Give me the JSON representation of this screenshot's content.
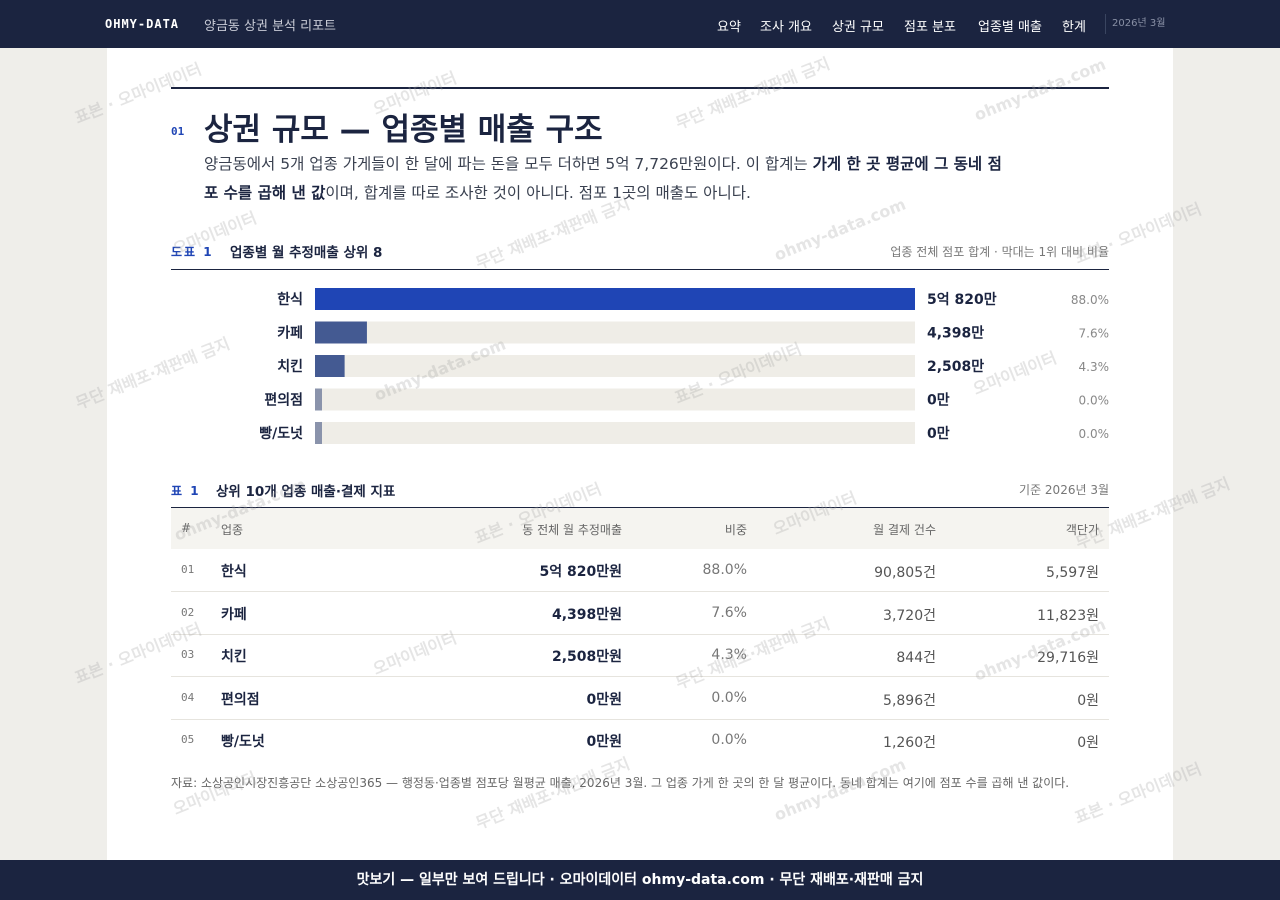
{
  "nav": {
    "brand": "OHMY-DATA",
    "subtitle": "양금동 상권 분석 리포트",
    "links": [
      "요약",
      "조사 개요",
      "상권 규모",
      "점포 분포",
      "업종별 매출",
      "한계"
    ],
    "date": "2026년 3월"
  },
  "section": {
    "number": "01",
    "title": "상권 규모 — 업종별 매출 구조",
    "lead": [
      "양금동에서 5개 업종 가게들이 한 달에 파는 돈을 모두 더하면 5억 7,726만원이다. 이 합계는 ",
      "가게 한 곳 평균에 그 동네 점포 수를 곱해 낸 값",
      "이며, 합계를 따로 조사한 것이 아니다. 점포 1곳의 매출도 아니다."
    ]
  },
  "figure": {
    "label": "도표 1",
    "title": "업종별 월 추정매출 상위 8",
    "note": "업종 전체 점포 합계 · 막대는 1위 대비 비율",
    "categories": [
      "한식",
      "카페",
      "치킨",
      "편의점",
      "빵/도넛"
    ],
    "values": [
      50820,
      4398,
      2508,
      0,
      0
    ],
    "value_labels": [
      "5억 820만",
      "4,398만",
      "2,508만",
      "0만",
      "0만"
    ],
    "shares": [
      "88.0%",
      "7.6%",
      "4.3%",
      "0.0%",
      "0.0%"
    ],
    "colors": [
      "#1f45b5",
      "#445a92",
      "#445a92",
      "#8a93ab",
      "#8a93ab"
    ]
  },
  "table": {
    "label": "표 1",
    "title": "상위 10개 업종 매출·결제 지표",
    "note": "기준 2026년 3월",
    "columns": [
      "#",
      "업종",
      "동 전체 월 추정매출",
      "비중",
      "월 결제 건수",
      "객단가"
    ],
    "rows": [
      [
        "01",
        "한식",
        "5억 820만원",
        "88.0%",
        "90,805건",
        "5,597원"
      ],
      [
        "02",
        "카페",
        "4,398만원",
        "7.6%",
        "3,720건",
        "11,823원"
      ],
      [
        "03",
        "치킨",
        "2,508만원",
        "4.3%",
        "844건",
        "29,716원"
      ],
      [
        "04",
        "편의점",
        "0만원",
        "0.0%",
        "5,896건",
        "0원"
      ],
      [
        "05",
        "빵/도넛",
        "0만원",
        "0.0%",
        "1,260건",
        "0원"
      ]
    ]
  },
  "source": "자료: 소상공인시장진흥공단 소상공인365 — 행정동·업종별 점포당 월평균 매출, 2026년 3월. 그 업종 가게 한 곳의 한 달 평균이다. 동네 합계는 여기에 점포 수를 곱해 낸 값이다.",
  "footer": "맛보기 — 일부만 보여 드립니다 · 오마이데이터 ohmy-data.com · 무단 재배포·재판매 금지",
  "watermarks": [
    "표본 · 오마이데이터",
    "오마이데이터",
    "무단 재배포·재판매 금지",
    "ohmy-data.com"
  ]
}
